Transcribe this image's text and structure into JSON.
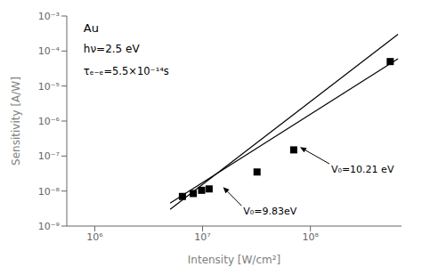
{
  "chart_data": {
    "type": "scatter",
    "xlabel": "Intensity [W/cm²]",
    "ylabel": "Sensitivity [A/W]",
    "log": true,
    "xlim": [
      550000.0,
      700000000.0
    ],
    "xticks": [
      {
        "value": 1000000.0,
        "label": "10⁶"
      },
      {
        "value": 10000000.0,
        "label": "10⁷"
      },
      {
        "value": 100000000.0,
        "label": "10⁸"
      }
    ],
    "ylim": [
      1e-09,
      0.001
    ],
    "yticks": [
      {
        "value": 1e-09,
        "label": "10⁻⁹"
      },
      {
        "value": 1e-08,
        "label": "10⁻⁸"
      },
      {
        "value": 1e-07,
        "label": "10⁻⁷"
      },
      {
        "value": 1e-06,
        "label": "10⁻⁶"
      },
      {
        "value": 1e-05,
        "label": "10⁻⁵"
      },
      {
        "value": 0.0001,
        "label": "10⁻⁴"
      },
      {
        "value": 0.001,
        "label": "10⁻³"
      }
    ],
    "grid": false,
    "series": [
      {
        "type": "scatter",
        "marker": "square",
        "color": "#000000",
        "x": [
          6500000.0,
          8200000.0,
          9800000.0,
          11500000.0,
          32000000.0,
          70000000.0,
          550000000.0
        ],
        "values": [
          7e-09,
          8.5e-09,
          1.05e-08,
          1.15e-08,
          3.5e-08,
          1.5e-07,
          5e-05
        ]
      },
      {
        "type": "line",
        "color": "#000000",
        "x": [
          5000000.0,
          650000000.0
        ],
        "values": [
          4.5e-09,
          6e-05
        ]
      },
      {
        "type": "line",
        "color": "#000000",
        "x": [
          5000000.0,
          650000000.0
        ],
        "values": [
          3e-09,
          0.0003
        ]
      }
    ],
    "annotations": [
      {
        "text": "V₀=9.83eV",
        "xy": [
          15500000.0,
          1.3e-08
        ],
        "xytext": [
          23000000.0,
          3.8e-09
        ]
      },
      {
        "text": "V₀=10.21 eV",
        "xy": [
          80000000.0,
          1.8e-07
        ],
        "xytext": [
          150000000.0,
          6e-08
        ]
      }
    ],
    "labels": [
      "Au",
      "hν=2.5 eV",
      "τₑ₋ₑ=5.5×10⁻¹⁴s"
    ]
  }
}
